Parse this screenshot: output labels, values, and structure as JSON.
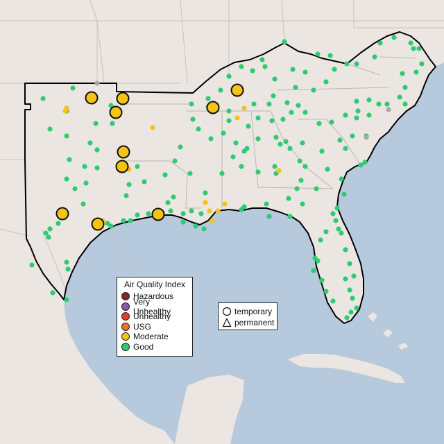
{
  "legend": {
    "title": "Air Quality Index",
    "categories": [
      {
        "label": "Hazardous",
        "color": "#7e2a24"
      },
      {
        "label": "Very Unhealthy",
        "color": "#8c55a8"
      },
      {
        "label": "Unhealthy",
        "color": "#e2402b"
      },
      {
        "label": "USG",
        "color": "#e9751c"
      },
      {
        "label": "Moderate",
        "color": "#f5c313"
      },
      {
        "label": "Good",
        "color": "#2fcb73"
      }
    ]
  },
  "shape_legend": {
    "temporary": "temporary",
    "permanent": "permanent"
  },
  "colors": {
    "water": "#b7c9dc",
    "land": "#ebe6e2",
    "state_border": "#c7c2bf",
    "region_outline": "#000000",
    "no_data": "#a9a9a9"
  }
}
